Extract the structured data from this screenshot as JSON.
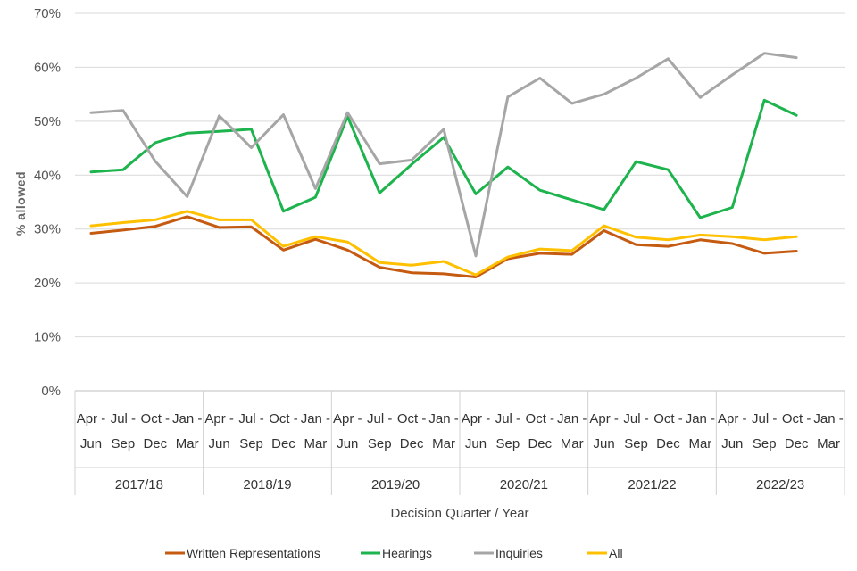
{
  "chart_data": {
    "type": "line",
    "title": "",
    "xlabel": "Decision Quarter / Year",
    "ylabel": "% allowed",
    "ylim": [
      0,
      70
    ],
    "yticks": [
      "0%",
      "10%",
      "20%",
      "30%",
      "40%",
      "50%",
      "60%",
      "70%"
    ],
    "ytick_values": [
      0,
      10,
      20,
      30,
      40,
      50,
      60,
      70
    ],
    "grid": true,
    "legend_position": "bottom",
    "categories": [
      {
        "top": "Apr -",
        "bottom": "Jun"
      },
      {
        "top": "Jul -",
        "bottom": "Sep"
      },
      {
        "top": "Oct -",
        "bottom": "Dec"
      },
      {
        "top": "Jan -",
        "bottom": "Mar"
      },
      {
        "top": "Apr -",
        "bottom": "Jun"
      },
      {
        "top": "Jul -",
        "bottom": "Sep"
      },
      {
        "top": "Oct -",
        "bottom": "Dec"
      },
      {
        "top": "Jan -",
        "bottom": "Mar"
      },
      {
        "top": "Apr -",
        "bottom": "Jun"
      },
      {
        "top": "Jul -",
        "bottom": "Sep"
      },
      {
        "top": "Oct -",
        "bottom": "Dec"
      },
      {
        "top": "Jan -",
        "bottom": "Mar"
      },
      {
        "top": "Apr -",
        "bottom": "Jun"
      },
      {
        "top": "Jul -",
        "bottom": "Sep"
      },
      {
        "top": "Oct -",
        "bottom": "Dec"
      },
      {
        "top": "Jan -",
        "bottom": "Mar"
      },
      {
        "top": "Apr -",
        "bottom": "Jun"
      },
      {
        "top": "Jul -",
        "bottom": "Sep"
      },
      {
        "top": "Oct -",
        "bottom": "Dec"
      },
      {
        "top": "Jan -",
        "bottom": "Mar"
      },
      {
        "top": "Apr -",
        "bottom": "Jun"
      },
      {
        "top": "Jul -",
        "bottom": "Sep"
      },
      {
        "top": "Oct -",
        "bottom": "Dec"
      },
      {
        "top": "Jan -",
        "bottom": "Mar"
      }
    ],
    "years": [
      "2017/18",
      "2018/19",
      "2019/20",
      "2020/21",
      "2021/22",
      "2022/23"
    ],
    "series": [
      {
        "name": "Written Representations",
        "color": "#C55A11",
        "values": [
          29.2,
          29.8,
          30.5,
          32.3,
          30.3,
          30.4,
          26.1,
          28.1,
          26.1,
          22.9,
          21.9,
          21.7,
          21.1,
          24.5,
          25.5,
          25.3,
          29.7,
          27.1,
          26.8,
          28.0,
          27.3,
          25.5,
          25.9,
          null
        ]
      },
      {
        "name": "Hearings",
        "color": "#1DB34D",
        "values": [
          40.6,
          41.0,
          46.0,
          47.8,
          48.1,
          48.5,
          33.3,
          35.9,
          50.9,
          36.7,
          42.0,
          47.0,
          36.5,
          41.5,
          37.2,
          35.4,
          33.6,
          42.5,
          41.0,
          32.1,
          34.0,
          53.9,
          51.1,
          null
        ]
      },
      {
        "name": "Inquiries",
        "color": "#A6A6A6",
        "values": [
          51.6,
          52.0,
          42.6,
          36.0,
          51.0,
          45.1,
          51.2,
          37.5,
          51.6,
          42.1,
          42.8,
          48.5,
          25.0,
          54.5,
          58.0,
          53.3,
          55.0,
          58.0,
          61.6,
          54.4,
          58.6,
          62.6,
          61.8,
          null
        ]
      },
      {
        "name": "All",
        "color": "#FFC000",
        "values": [
          30.6,
          31.2,
          31.7,
          33.3,
          31.7,
          31.7,
          26.8,
          28.6,
          27.6,
          23.8,
          23.3,
          24.0,
          21.5,
          24.8,
          26.3,
          26.0,
          30.6,
          28.5,
          28.0,
          28.9,
          28.6,
          28.0,
          28.6,
          null
        ]
      }
    ]
  }
}
